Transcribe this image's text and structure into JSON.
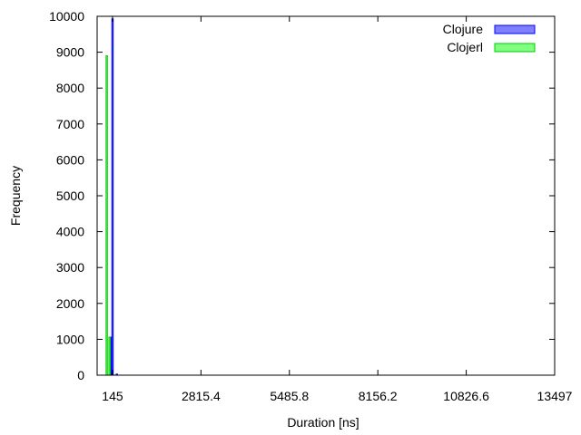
{
  "chart_data": {
    "type": "bar",
    "title": "",
    "xlabel": "Duration [ns]",
    "ylabel": "Frequency",
    "xlim": [
      -320,
      13497
    ],
    "ylim": [
      0,
      10000
    ],
    "x_ticks": [
      145,
      2815.4,
      5485.8,
      8156.2,
      10826.6,
      13497
    ],
    "x_tick_labels": [
      "145",
      "2815.4",
      "5485.8",
      "8156.2",
      "10826.6",
      "13497"
    ],
    "y_ticks": [
      0,
      1000,
      2000,
      3000,
      4000,
      5000,
      6000,
      7000,
      8000,
      9000,
      10000
    ],
    "y_tick_labels": [
      "0",
      "1000",
      "2000",
      "3000",
      "4000",
      "5000",
      "6000",
      "7000",
      "8000",
      "9000",
      "10000"
    ],
    "grid": false,
    "legend_position": "top-right",
    "series": [
      {
        "name": "Clojure",
        "fill": "#7f7fff",
        "stroke": "#0000ff",
        "x": [
          85,
          145,
          210,
          275,
          340
        ],
        "values": [
          1060,
          9930,
          0,
          30,
          0
        ]
      },
      {
        "name": "Clojerl",
        "fill": "#80ff80",
        "stroke": "#00cc00",
        "x": [
          -30,
          55,
          100,
          145
        ],
        "values": [
          8900,
          1060,
          0,
          0
        ]
      }
    ]
  }
}
